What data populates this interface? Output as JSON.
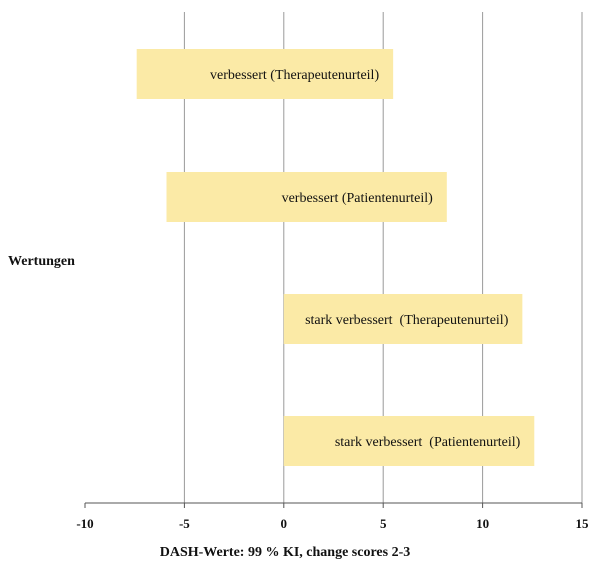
{
  "chart_data": {
    "type": "bar",
    "orientation": "horizontal",
    "subtype": "floating-range",
    "xlabel": "DASH-Werte: 99 % KI, change scores 2-3",
    "ylabel": "Wertungen",
    "xlim": [
      -10,
      15
    ],
    "xticks": [
      -10,
      -5,
      0,
      5,
      10,
      15
    ],
    "grid": true,
    "legend": "none",
    "bar_color": "#fbeaa6",
    "categories": [
      "verbessert (Therapeutenurteil)",
      "verbessert (Patientenurteil)",
      "stark verbessert  (Therapeutenurteil)",
      "stark verbessert  (Patientenurteil)"
    ],
    "ranges": [
      {
        "label": "verbessert (Therapeutenurteil)",
        "low": -7.4,
        "high": 5.5
      },
      {
        "label": "verbessert (Patientenurteil)",
        "low": -5.9,
        "high": 8.2
      },
      {
        "label": "stark verbessert  (Therapeutenurteil)",
        "low": 0,
        "high": 12.0
      },
      {
        "label": "stark verbessert  (Patientenurteil)",
        "low": 0,
        "high": 12.6
      }
    ]
  }
}
